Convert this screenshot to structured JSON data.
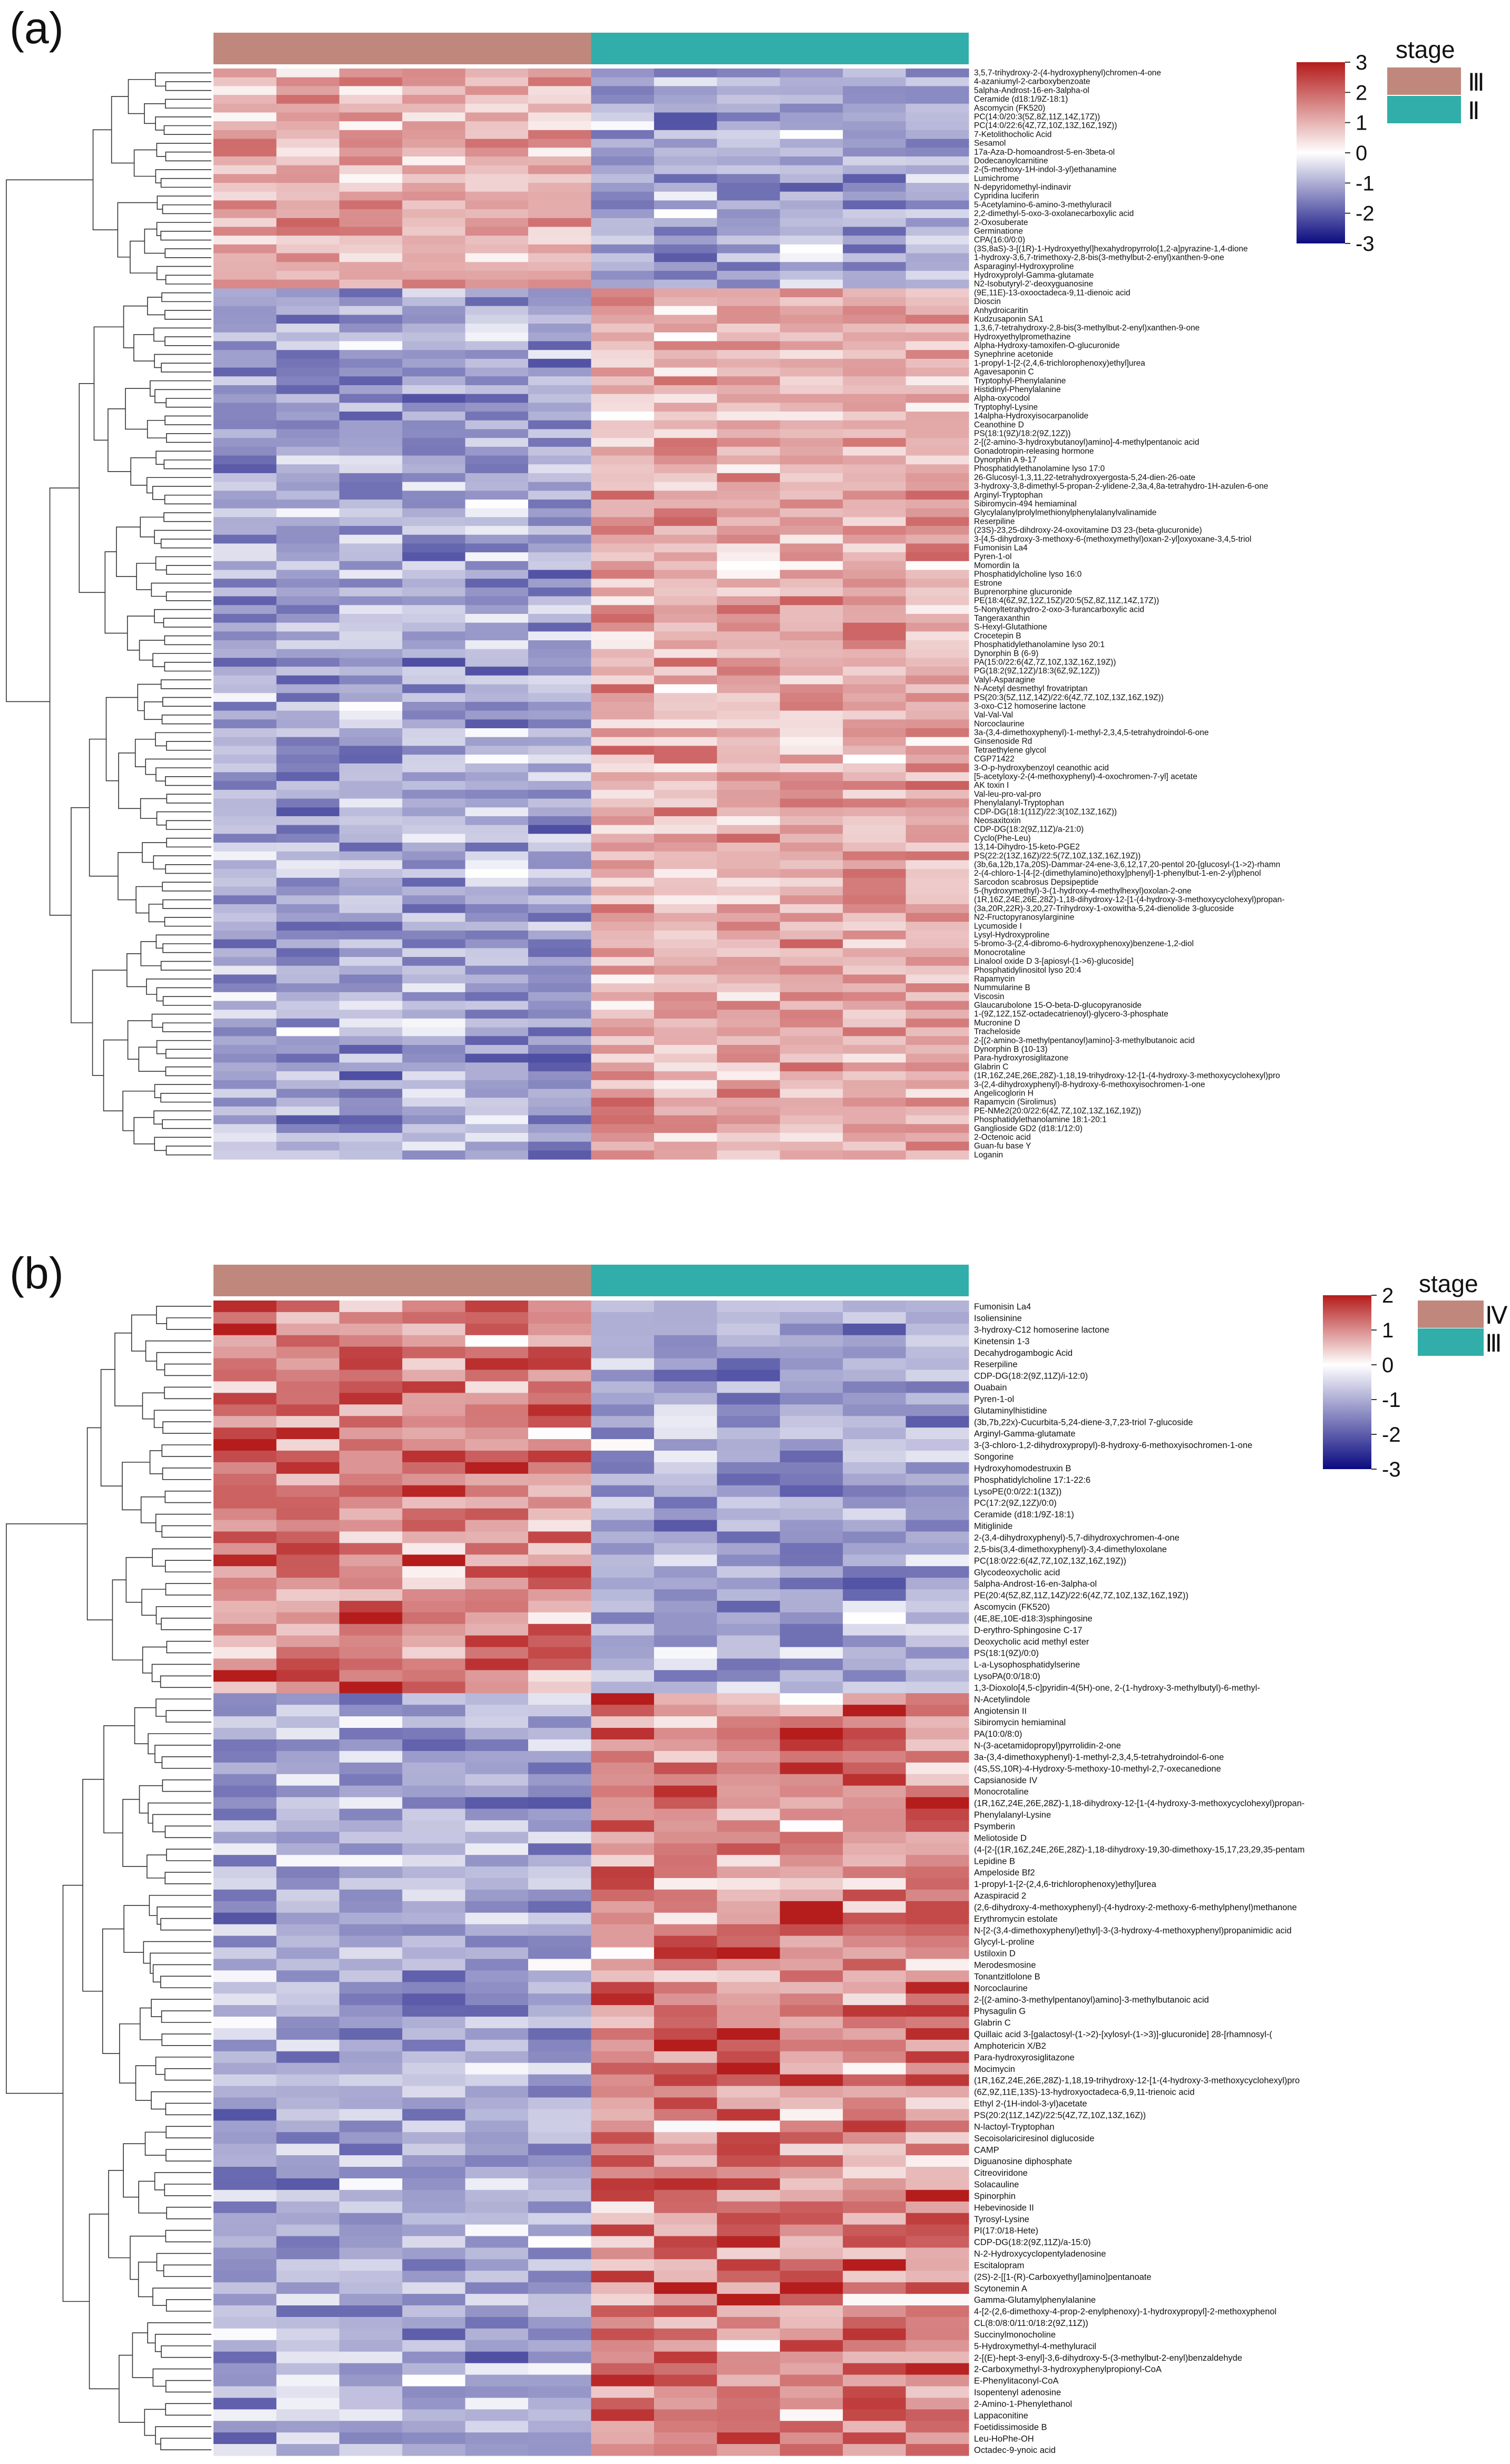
{
  "chart_data": [
    {
      "type": "heatmap",
      "panel_label": "(a)",
      "columns": 12,
      "column_groups": [
        {
          "name": "Ⅲ",
          "color": "#c0887d",
          "span": 6
        },
        {
          "name": "Ⅱ",
          "color": "#31aeaa",
          "span": 6
        }
      ],
      "legend": {
        "title": "stage",
        "placement": "top-right",
        "items": [
          "Ⅲ",
          "Ⅱ"
        ],
        "colors": [
          "#c0887d",
          "#31aeaa"
        ]
      },
      "colorbar": {
        "min": -3,
        "max": 3,
        "ticks": [
          "3",
          "2",
          "1",
          "0",
          "-1",
          "-2",
          "-3"
        ],
        "colors": {
          "low": "#0b0b80",
          "mid": "#ffffff",
          "high": "#b51c1c"
        }
      },
      "cluster_split": 25,
      "row_labels": [
        "3,5,7-trihydroxy-2-(4-hydroxyphenyl)chromen-4-one",
        "4-azaniumyl-2-carboxybenzoate",
        "5alpha-Androst-16-en-3alpha-ol",
        "Ceramide (d18:1/9Z-18:1)",
        "Ascomycin (FK520)",
        "PC(14:0/20:3(5Z,8Z,11Z,14Z,17Z))",
        "PC(14:0/22:6(4Z,7Z,10Z,13Z,16Z,19Z))",
        "7-Ketolithocholic Acid",
        "Sesamol",
        "17a-Aza-D-homoandrost-5-en-3beta-ol",
        "Dodecanoylcarnitine",
        "2-(5-methoxy-1H-indol-3-yl)ethanamine",
        "Lumichrome",
        "N-depyridomethyl-indinavir",
        "Cypridina luciferin",
        "5-Acetylamino-6-amino-3-methyluracil",
        "2,2-dimethyl-5-oxo-3-oxolanecarboxylic acid",
        "2-Oxosuberate",
        "Germinatione",
        "CPA(16:0/0:0)",
        "(3S,8aS)-3-[(1R)-1-Hydroxyethyl]hexahydropyrrolo[1,2-a]pyrazine-1,4-dione",
        "1-hydroxy-3,6,7-trimethoxy-2,8-bis(3-methylbut-2-enyl)xanthen-9-one",
        "Asparaginyl-Hydroxyproline",
        "Hydroxyprolyl-Gamma-glutamate",
        "N2-Isobutyryl-2'-deoxyguanosine",
        "(9E,11E)-13-oxooctadeca-9,11-dienoic acid",
        "Dioscin",
        "Anhydroicaritin",
        "Kudzusaponin SA1",
        "1,3,6,7-tetrahydroxy-2,8-bis(3-methylbut-2-enyl)xanthen-9-one",
        "Hydroxyethylpromethazine",
        "Alpha-Hydroxy-tamoxifen-O-glucuronide",
        "Synephrine acetonide",
        "1-propyl-1-[2-(2,4,6-trichlorophenoxy)ethyl]urea",
        "Agavesaponin C",
        "Tryptophyl-Phenylalanine",
        "Histidinyl-Phenylalanine",
        "Alpha-oxycodol",
        "Tryptophyl-Lysine",
        "14alpha-Hydroxyisocarpanolide",
        "Ceanothine D",
        "PS(18:1(9Z)/18:2(9Z,12Z))",
        "2-[(2-amino-3-hydroxybutanoyl)amino]-4-methylpentanoic acid",
        "Gonadotropin-releasing hormone",
        "Dynorphin A 9-17",
        "Phosphatidylethanolamine lyso 17:0",
        "26-Glucosyl-1,3,11,22-tetrahydroxyergosta-5,24-dien-26-oate",
        "3-hydroxy-3,8-dimethyl-5-propan-2-ylidene-2,3a,4,8a-tetrahydro-1H-azulen-6-one",
        "Arginyl-Tryptophan",
        "Sibiromycin-494 hemiaminal",
        "Glycylalanylprolylmethionylphenylalanylvalinamide",
        "Reserpiline",
        "(23S)-23,25-dihdroxy-24-oxovitamine D3 23-(beta-glucuronide)",
        "3-[4,5-dihydroxy-3-methoxy-6-(methoxymethyl)oxan-2-yl]oxyoxane-3,4,5-triol",
        "Fumonisin La4",
        "Pyren-1-ol",
        "Momordin Ia",
        "Phosphatidylcholine lyso 16:0",
        "Estrone",
        "Buprenorphine glucuronide",
        "PE(18:4(6Z,9Z,12Z,15Z)/20:5(5Z,8Z,11Z,14Z,17Z))",
        "5-Nonyltetrahydro-2-oxo-3-furancarboxylic acid",
        "Tangeraxanthin",
        "S-Hexyl-Glutathione",
        "Crocetepin B",
        "Phosphatidylethanolamine lyso 20:1",
        "Dynorphin B (6-9)",
        "PA(15:0/22:6(4Z,7Z,10Z,13Z,16Z,19Z))",
        "PG(18:2(9Z,12Z)/18:3(6Z,9Z,12Z))",
        "Valyl-Asparagine",
        "N-Acetyl desmethyl frovatriptan",
        "PS(20:3(5Z,11Z,14Z)/22:6(4Z,7Z,10Z,13Z,16Z,19Z))",
        "3-oxo-C12 homoserine lactone",
        "Val-Val-Val",
        "Norcoclaurine",
        "3a-(3,4-dimethoxyphenyl)-1-methyl-2,3,4,5-tetrahydroindol-6-one",
        "Ginsenoside Rd",
        "Tetraethylene glycol",
        "CGP71422",
        "3-O-p-hydroxybenzoyl ceanothic acid",
        "[5-acetyloxy-2-(4-methoxyphenyl)-4-oxochromen-7-yl] acetate",
        "AK toxin I",
        "Val-leu-pro-val-pro",
        "Phenylalanyl-Tryptophan",
        "CDP-DG(18:1(11Z)/22:3(10Z,13Z,16Z))",
        "Neosaxitoxin",
        "CDP-DG(18:2(9Z,11Z)/a-21:0)",
        "Cyclo(Phe-Leu)",
        "13,14-Dihydro-15-keto-PGE2",
        "PS(22:2(13Z,16Z)/22:5(7Z,10Z,13Z,16Z,19Z))",
        "(3b,6a,12b,17a,20S)-Dammar-24-ene-3,6,12,17,20-pentol 20-[glucosyl-(1->2)-rhamn",
        "2-(4-chloro-1-[4-[2-(dimethylamino)ethoxy]phenyl]-1-phenylbut-1-en-2-yl)phenol",
        "Sarcodon scabrosus Depsipeptide",
        "5-(hydroxymethyl)-3-(1-hydroxy-4-methylhexyl)oxolan-2-one",
        "(1R,16Z,24E,26E,28Z)-1,18-dihydroxy-12-[1-(4-hydroxy-3-methoxycyclohexyl)propan-",
        "(3a,20R,22R)-3,20,27-Trihydroxy-1-oxowitha-5,24-dienolide 3-glucoside",
        "N2-Fructopyranosylarginine",
        "Lycumoside I",
        "Lysyl-Hydroxyproline",
        "5-bromo-3-(2,4-dibromo-6-hydroxyphenoxy)benzene-1,2-diol",
        "Monocrotaline",
        "Linalool oxide D 3-[apiosyl-(1->6)-glucoside]",
        "Phosphatidylinositol lyso 20:4",
        "Rapamycin",
        "Nummularine B",
        "Viscosin",
        "Glaucarubolone 15-O-beta-D-glucopyranoside",
        "1-(9Z,12Z,15Z-octadecatrienoyl)-glycero-3-phosphate",
        "Mucronine D",
        "Tracheloside",
        "2-[(2-amino-3-methylpentanoyl)amino]-3-methylbutanoic acid",
        "Dynorphin B (10-13)",
        "Para-hydroxyrosiglitazone",
        "Glabrin C",
        "(1R,16Z,24E,26E,28Z)-1,18,19-trihydroxy-12-[1-(4-hydroxy-3-methoxycyclohexyl)pro",
        "3-(2,4-dihydroxyphenyl)-8-hydroxy-6-methoxyisochromen-1-one",
        "Angelicoglorin H",
        "Rapamycin (Sirolimus)",
        "PE-NMe2(20:0/22:6(4Z,7Z,10Z,13Z,16Z,19Z))",
        "Phosphatidylethanolamine 18:1-20:1",
        "Ganglioside GD2 (d18:1/12:0)",
        "2-Octenoic acid",
        "Guan-fu base Y",
        "Loganin"
      ]
    },
    {
      "type": "heatmap",
      "panel_label": "(b)",
      "columns": 12,
      "column_groups": [
        {
          "name": "Ⅳ",
          "color": "#c0887d",
          "span": 6
        },
        {
          "name": "Ⅲ",
          "color": "#31aeaa",
          "span": 6
        }
      ],
      "legend": {
        "title": "stage",
        "placement": "top-right",
        "items": [
          "Ⅳ",
          "Ⅲ"
        ],
        "colors": [
          "#c0887d",
          "#31aeaa"
        ]
      },
      "colorbar": {
        "min": -3,
        "max": 2,
        "ticks": [
          "2",
          "1",
          "0",
          "-1",
          "-2",
          "-3"
        ],
        "colors": {
          "low": "#0b0b80",
          "mid": "#ffffff",
          "high": "#b51c1c"
        }
      },
      "cluster_split": 34,
      "row_labels": [
        "Fumonisin La4",
        "Isoliensinine",
        "3-hydroxy-C12 homoserine lactone",
        "Kinetensin 1-3",
        "Decahydrogambogic Acid",
        "Reserpiline",
        "CDP-DG(18:2(9Z,11Z)/i-12:0)",
        "Ouabain",
        "Pyren-1-ol",
        "Glutaminylhistidine",
        "(3b,7b,22x)-Cucurbita-5,24-diene-3,7,23-triol 7-glucoside",
        "Arginyl-Gamma-glutamate",
        "3-(3-chloro-1,2-dihydroxypropyl)-8-hydroxy-6-methoxyisochromen-1-one",
        "Songorine",
        "Hydroxyhomodestruxin B",
        "Phosphatidylcholine 17:1-22:6",
        "LysoPE(0:0/22:1(13Z))",
        "PC(17:2(9Z,12Z)/0:0)",
        "Ceramide (d18:1/9Z-18:1)",
        "Mitiglinide",
        "2-(3,4-dihydroxyphenyl)-5,7-dihydroxychromen-4-one",
        "2,5-bis(3,4-dimethoxyphenyl)-3,4-dimethyloxolane",
        "PC(18:0/22:6(4Z,7Z,10Z,13Z,16Z,19Z))",
        "Glycodeoxycholic acid",
        "5alpha-Androst-16-en-3alpha-ol",
        "PE(20:4(5Z,8Z,11Z,14Z)/22:6(4Z,7Z,10Z,13Z,16Z,19Z))",
        "Ascomycin (FK520)",
        "(4E,8E,10E-d18:3)sphingosine",
        "D-erythro-Sphingosine C-17",
        "Deoxycholic acid methyl ester",
        "PS(18:1(9Z)/0:0)",
        "L-a-Lysophosphatidylserine",
        "LysoPA(0:0/18:0)",
        "1,3-Dioxolo[4,5-c]pyridin-4(5H)-one, 2-(1-hydroxy-3-methylbutyl)-6-methyl-",
        "N-Acetylindole",
        "Angiotensin II",
        "Sibiromycin hemiaminal",
        "PA(10:0/8:0)",
        "N-(3-acetamidopropyl)pyrrolidin-2-one",
        "3a-(3,4-dimethoxyphenyl)-1-methyl-2,3,4,5-tetrahydroindol-6-one",
        "(4S,5S,10R)-4-Hydroxy-5-methoxy-10-methyl-2,7-oxecanedione",
        "Capsianoside IV",
        "Monocrotaline",
        "(1R,16Z,24E,26E,28Z)-1,18-dihydroxy-12-[1-(4-hydroxy-3-methoxycyclohexyl)propan-",
        "Phenylalanyl-Lysine",
        "Psymberin",
        "Meliotoside D",
        "(4-[2-[(1R,16Z,24E,26E,28Z)-1,18-dihydroxy-19,30-dimethoxy-15,17,23,29,35-pentam",
        "Lepidine B",
        "Ampeloside Bf2",
        "1-propyl-1-[2-(2,4,6-trichlorophenoxy)ethyl]urea",
        "Azaspiracid 2",
        "(2,6-dihydroxy-4-methoxyphenyl)-(4-hydroxy-2-methoxy-6-methylphenyl)methanone",
        "Erythromycin estolate",
        "N-[2-(3,4-dimethoxyphenyl)ethyl]-3-(3-hydroxy-4-methoxyphenyl)propanimidic acid",
        "Glycyl-L-proline",
        "Ustiloxin D",
        "Merodesmosine",
        "Tonantzitlolone B",
        "Norcoclaurine",
        "2-[(2-amino-3-methylpentanoyl)amino]-3-methylbutanoic acid",
        "Physagulin G",
        "Glabrin C",
        "Quillaic acid 3-[galactosyl-(1->2)-[xylosyl-(1->3)]-glucuronide] 28-[rhamnosyl-(",
        "Amphotericin X/B2",
        "Para-hydroxyrosiglitazone",
        "Mocimycin",
        "(1R,16Z,24E,26E,28Z)-1,18,19-trihydroxy-12-[1-(4-hydroxy-3-methoxycyclohexyl)pro",
        "(6Z,9Z,11E,13S)-13-hydroxyoctadeca-6,9,11-trienoic acid",
        "Ethyl 2-(1H-indol-3-yl)acetate",
        "PS(20:2(11Z,14Z)/22:5(4Z,7Z,10Z,13Z,16Z))",
        "N-lactoyl-Tryptophan",
        "Secoisolariciresinol diglucoside",
        "CAMP",
        "Diguanosine diphosphate",
        "Citreoviridone",
        "Solacauline",
        "Spinorphin",
        "Hebevinoside II",
        "Tyrosyl-Lysine",
        "PI(17:0/18-Hete)",
        "CDP-DG(18:2(9Z,11Z)/a-15:0)",
        "N-2-Hydroxycyclopentyladenosine",
        "Escitalopram",
        "(2S)-2-[[1-(R)-Carboxyethyl]amino]pentanoate",
        "Scytonemin A",
        "Gamma-Glutamylphenylalanine",
        "4-[2-(2,6-dimethoxy-4-prop-2-enylphenoxy)-1-hydroxypropyl]-2-methoxyphenol",
        "CL(8:0/8:0/11:0/18:2(9Z,11Z))",
        "Succinylmonocholine",
        "5-Hydroxymethyl-4-methyluracil",
        "2-[(E)-hept-3-enyl]-3,6-dihydroxy-5-(3-methylbut-2-enyl)benzaldehyde",
        "2-Carboxymethyl-3-hydroxyphenylpropionyl-CoA",
        "E-Phenylitaconyl-CoA",
        "Isopentenyl adenosine",
        "2-Amino-1-Phenylethanol",
        "Lappaconitine",
        "Foetidissimoside B",
        "Leu-HoPhe-OH",
        "Octadec-9-ynoic acid"
      ]
    }
  ]
}
